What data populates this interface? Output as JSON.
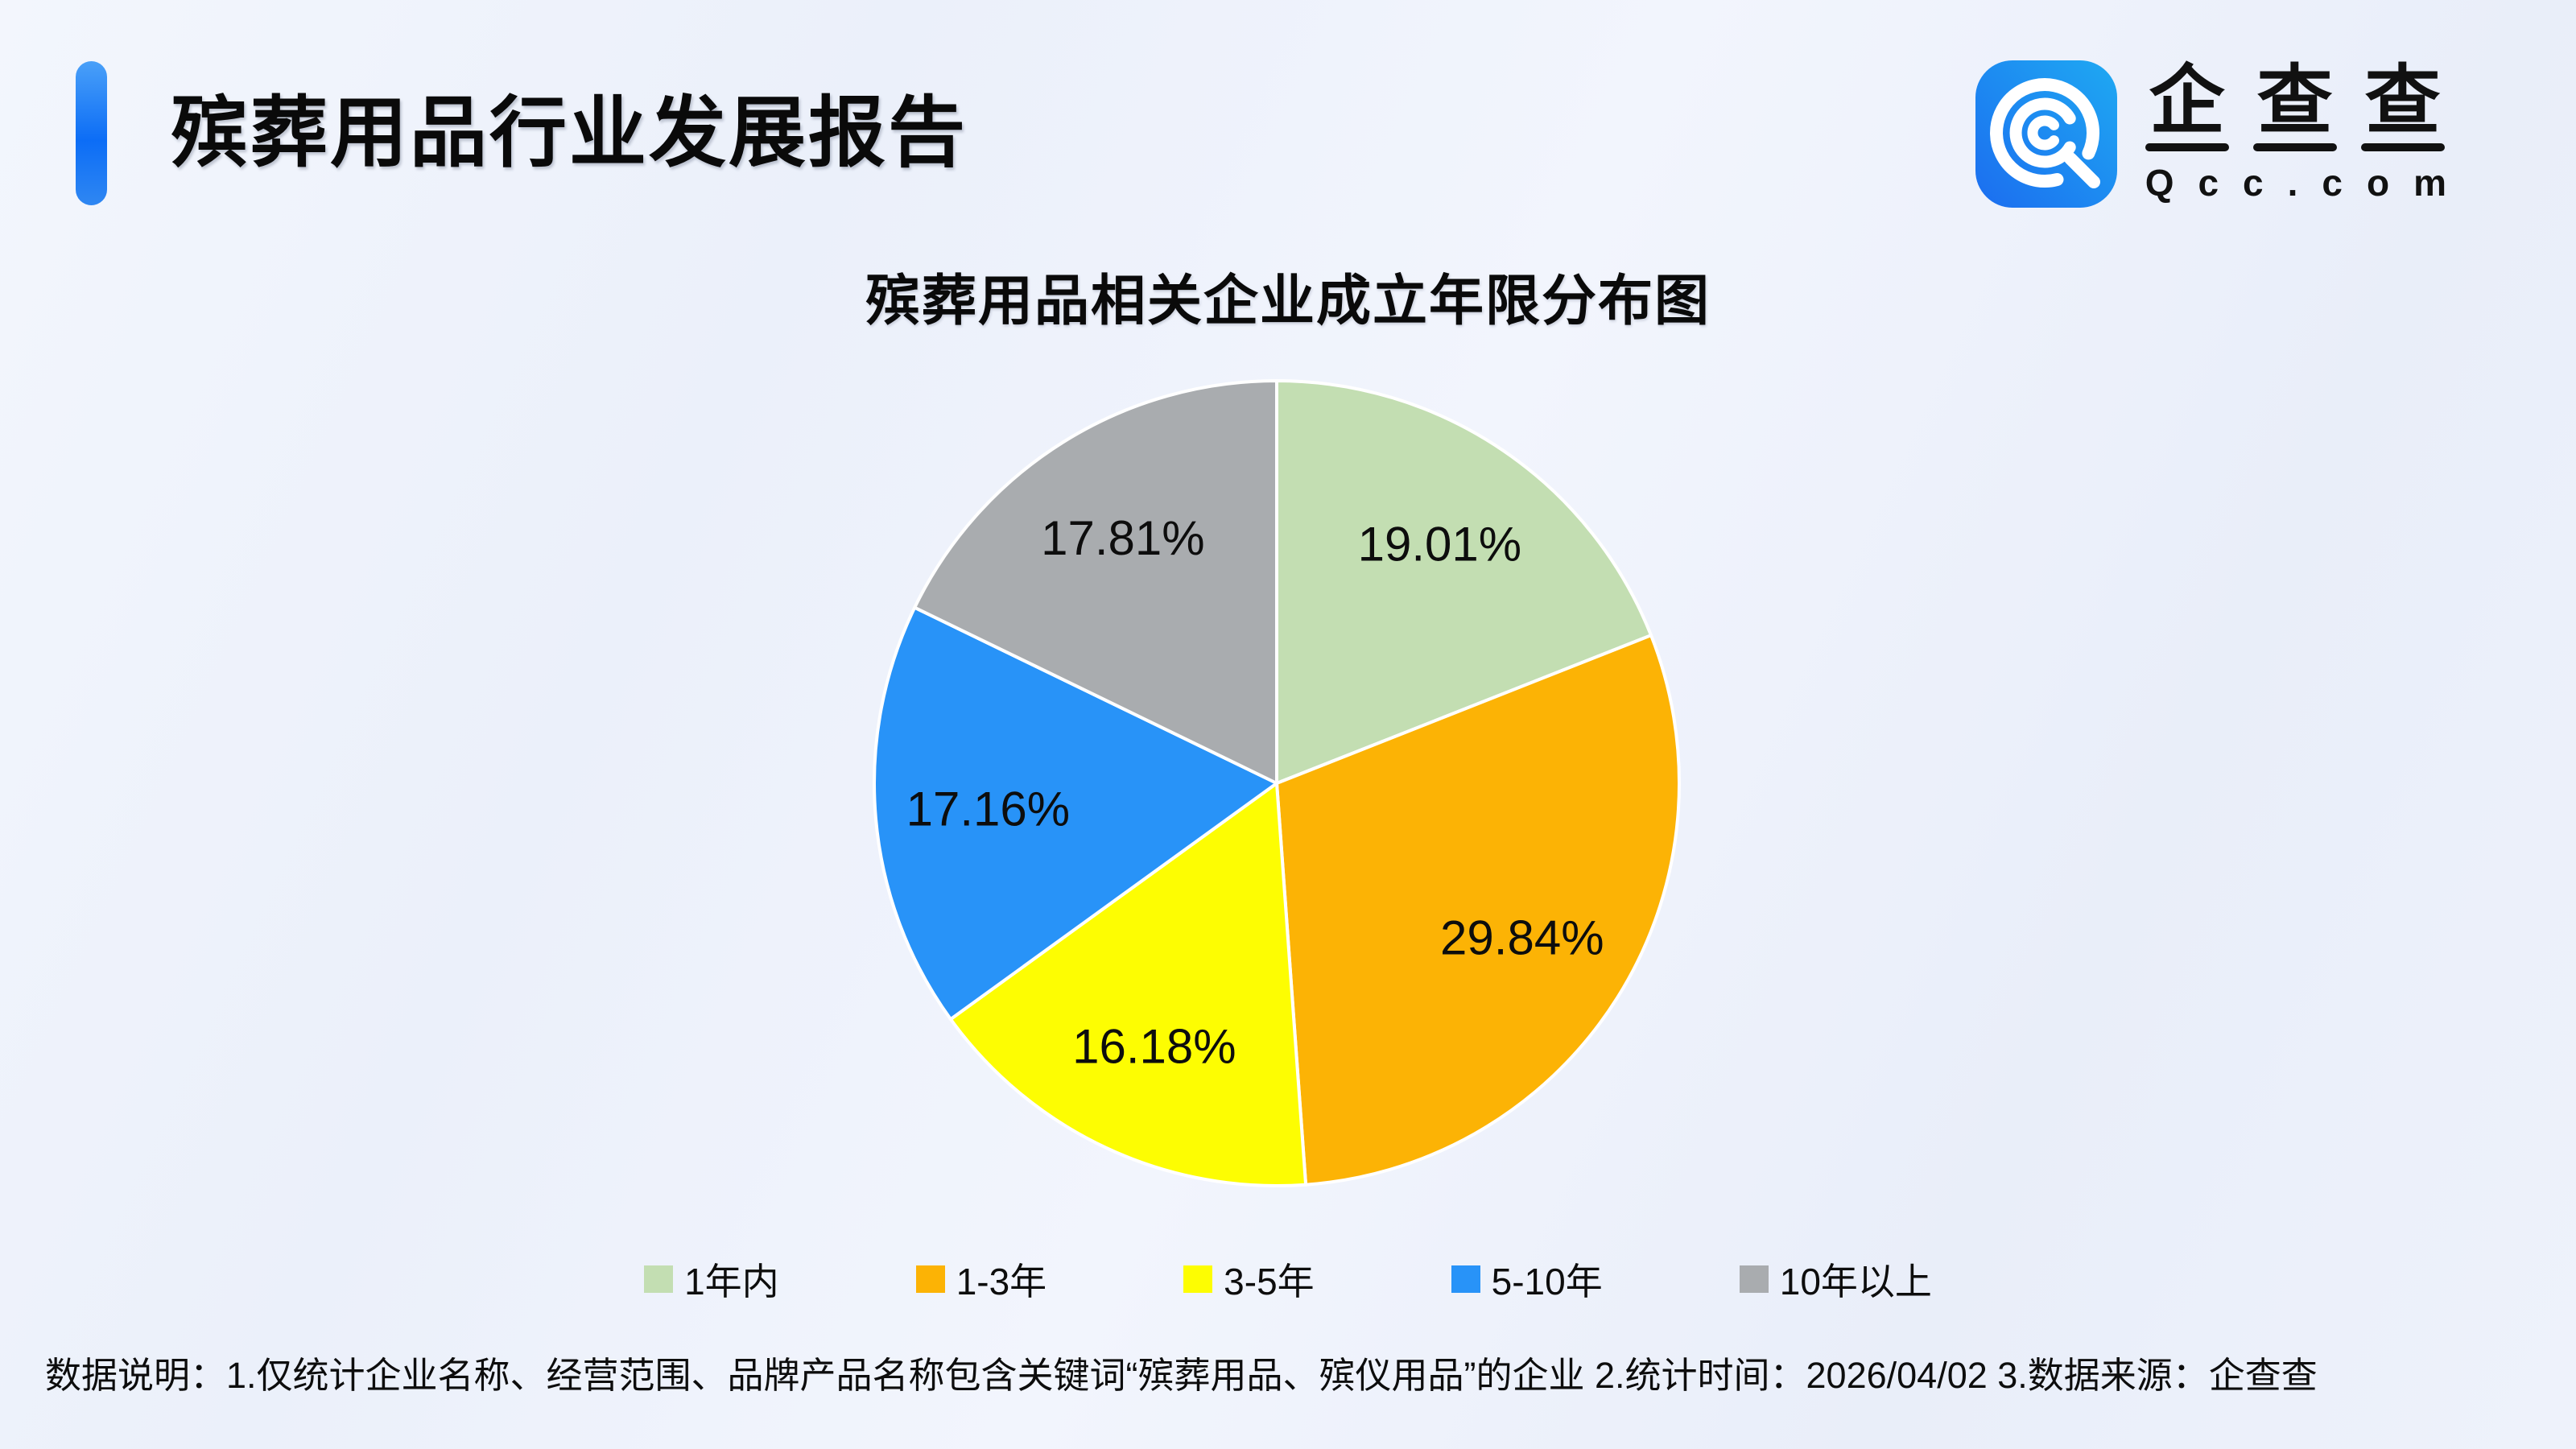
{
  "page": {
    "title": "殡葬用品行业发展报告",
    "note": "数据说明：1.仅统计企业名称、经营范围、品牌产品名称包含关键词“殡葬用品、殡仪用品”的企业  2.统计时间：2026/04/02   3.数据来源：企查查"
  },
  "logo": {
    "brand_chars": [
      "企",
      "查",
      "查"
    ],
    "domain": "Qcc.com"
  },
  "chart_data": {
    "type": "pie",
    "title": "殡葬用品相关企业成立年限分布图",
    "categories": [
      "1年内",
      "1-3年",
      "3-5年",
      "5-10年",
      "10年以上"
    ],
    "values": [
      19.01,
      29.84,
      16.18,
      17.16,
      17.81
    ],
    "labels": [
      "19.01%",
      "29.84%",
      "16.18%",
      "17.16%",
      "17.81%"
    ],
    "colors": [
      "#c3deb2",
      "#fcb305",
      "#fdfd02",
      "#2893f8",
      "#a9acaf"
    ],
    "start_angle_deg": 0,
    "direction": "clockwise",
    "legend_position": "bottom",
    "label_radius_ratio": 0.72,
    "slice_border_color": "#ffffff"
  },
  "colors": {
    "accent_blue": "#0c6df6",
    "logo_blue_dark": "#1b6df0",
    "logo_blue_light": "#1fa9f2",
    "background": "#eef2fb",
    "text": "#111111"
  }
}
